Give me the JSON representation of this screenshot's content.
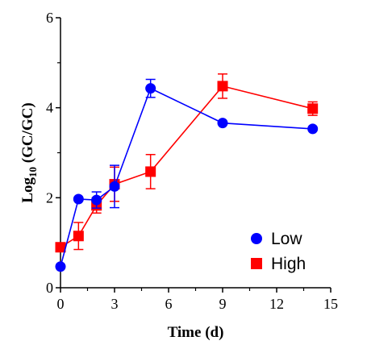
{
  "chart_data": {
    "type": "line",
    "xlabel": "Time (d)",
    "ylabel_main": "Log",
    "ylabel_sub": "10",
    "ylabel_rest": " (GC/GC)",
    "xlim": [
      0,
      15
    ],
    "ylim": [
      0,
      6
    ],
    "xticks": [
      0,
      3,
      6,
      9,
      12,
      15
    ],
    "yticks": [
      0,
      2,
      4,
      6
    ],
    "grid": false,
    "legend_position": "bottom-right",
    "series": [
      {
        "name": "Low",
        "color": "#0000ff",
        "marker": "circle",
        "x": [
          0,
          1,
          2,
          3,
          5,
          9,
          14
        ],
        "y": [
          0.47,
          1.97,
          1.95,
          2.25,
          4.43,
          3.66,
          3.53
        ],
        "err": [
          0.0,
          0.0,
          0.18,
          0.47,
          0.2,
          0.0,
          0.0
        ]
      },
      {
        "name": "High",
        "color": "#ff0000",
        "marker": "square",
        "x": [
          0,
          1,
          2,
          3,
          5,
          9,
          14
        ],
        "y": [
          0.9,
          1.15,
          1.83,
          2.3,
          2.58,
          4.48,
          3.98
        ],
        "err": [
          0.08,
          0.3,
          0.17,
          0.38,
          0.38,
          0.27,
          0.15
        ]
      }
    ]
  }
}
